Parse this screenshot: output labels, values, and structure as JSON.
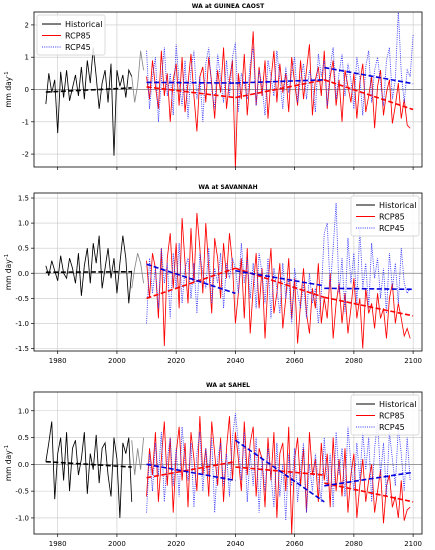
{
  "chart_data": [
    {
      "type": "line",
      "title": "WA at GUINEA CAOST",
      "ylabel": "mm day$^{-1}$",
      "ylabel_text": "mm day",
      "ylabel_sup": "-1",
      "xlim": [
        1972,
        2103
      ],
      "ylim": [
        -2.4,
        2.4
      ],
      "yticks": [
        -2,
        -1,
        0,
        1,
        2
      ],
      "xticks": [
        1980,
        2000,
        2020,
        2040,
        2060,
        2080,
        2100
      ],
      "xtick_labels_shown": false,
      "legend_position": "top-left",
      "legend": [
        {
          "label": "Historical",
          "color": "#000000",
          "style": "solid"
        },
        {
          "label": "RCP85",
          "color": "#ff0000",
          "style": "solid"
        },
        {
          "label": "RCP45",
          "color": "#3333ff",
          "style": "dotted"
        }
      ],
      "series": [
        {
          "name": "Historical",
          "color": "#000000",
          "dash": "solid",
          "x0": 1976,
          "values": [
            -0.45,
            0.5,
            -0.1,
            0.3,
            -1.35,
            0.55,
            -0.25,
            0.6,
            -0.35,
            0.05,
            0.45,
            -0.2,
            0.7,
            -0.3,
            0.9,
            0.2,
            1.3,
            0.4,
            -0.6,
            0.2,
            0.6,
            -0.4,
            0.8,
            -2.05,
            0.6,
            0.1,
            0.45,
            -0.25,
            0.6,
            0.4
          ]
        },
        {
          "name": "Transition",
          "color": "#888888",
          "dash": "solid",
          "x0": 2005,
          "values": [
            0.4,
            -0.4,
            0.15,
            1.2,
            0.6
          ]
        },
        {
          "name": "RCP85",
          "color": "#ff0000",
          "dash": "solid",
          "x0": 2010,
          "values": [
            0.4,
            -0.3,
            0.9,
            0.1,
            -0.6,
            1.2,
            -0.2,
            0.5,
            -1.0,
            0.3,
            0.8,
            -0.5,
            1.0,
            -0.7,
            0.2,
            1.1,
            -0.2,
            -1.3,
            0.4,
            0.7,
            -0.4,
            1.0,
            0.2,
            -0.9,
            0.6,
            -0.1,
            1.3,
            -0.6,
            0.3,
            0.9,
            -2.45,
            0.5,
            -0.3,
            1.1,
            -0.8,
            0.4,
            1.8,
            -0.5,
            0.7,
            -0.2,
            0.9,
            -0.9,
            0.3,
            1.2,
            -0.4,
            0.8,
            -0.1,
            0.5,
            -0.7,
            1.0,
            0.2,
            -0.5,
            0.9,
            -0.3,
            0.6,
            1.4,
            -0.8,
            0.3,
            0.7,
            -0.2,
            1.2,
            -0.6,
            0.4,
            0.9,
            -0.5,
            0.3,
            -1.0,
            0.6,
            0.1,
            -0.4,
            0.5,
            -0.9,
            0.2,
            0.8,
            -0.7,
            -0.2,
            0.4,
            -1.2,
            0.1,
            0.6,
            -0.8,
            -0.1,
            0.3,
            -1.05,
            -0.5,
            0.2,
            -0.9,
            -0.3,
            -1.1,
            -1.2
          ]
        },
        {
          "name": "RCP45",
          "color": "#3333ff",
          "dash": "dotted",
          "x0": 2010,
          "values": [
            1.2,
            -0.6,
            0.4,
            1.0,
            -1.0,
            0.3,
            1.3,
            -0.2,
            0.5,
            -0.8,
            1.4,
            0.2,
            -0.5,
            0.9,
            -0.9,
            0.6,
            1.2,
            -0.3,
            0.4,
            -1.0,
            0.8,
            1.3,
            0.0,
            -0.6,
            1.1,
            0.3,
            -0.4,
            0.9,
            -0.2,
            1.0,
            1.45,
            -0.7,
            0.5,
            0.2,
            -0.3,
            0.8,
            1.3,
            -0.5,
            0.6,
            0.1,
            -0.8,
            0.9,
            0.4,
            -0.2,
            1.2,
            0.3,
            -0.6,
            0.7,
            -0.1,
            0.5,
            1.0,
            -0.4,
            0.3,
            0.8,
            -0.3,
            0.6,
            0.2,
            -0.7,
            1.1,
            0.4,
            0.9,
            -0.5,
            0.7,
            1.3,
            -0.3,
            0.5,
            1.1,
            -0.2,
            0.8,
            0.3,
            -0.6,
            1.0,
            0.4,
            -0.8,
            0.7,
            1.2,
            -0.4,
            0.6,
            1.0,
            0.2,
            -0.5,
            0.9,
            1.3,
            -0.3,
            0.3,
            2.45,
            0.5,
            -0.4,
            0.6,
            0.4,
            1.7
          ]
        }
      ],
      "trends": [
        {
          "color": "#000000",
          "x": [
            1976,
            2005
          ],
          "y": [
            -0.08,
            0.05
          ]
        },
        {
          "color": "#ff0000",
          "x": [
            2010,
            2040
          ],
          "y": [
            0.08,
            -0.25
          ]
        },
        {
          "color": "#ff0000",
          "x": [
            2040,
            2070
          ],
          "y": [
            -0.25,
            0.3
          ]
        },
        {
          "color": "#ff0000",
          "x": [
            2070,
            2100
          ],
          "y": [
            0.3,
            -0.62
          ]
        },
        {
          "color": "#0000dd",
          "x": [
            2010,
            2040
          ],
          "y": [
            0.22,
            0.2
          ]
        },
        {
          "color": "#0000dd",
          "x": [
            2040,
            2070
          ],
          "y": [
            0.2,
            0.3
          ]
        },
        {
          "color": "#0000dd",
          "x": [
            2070,
            2100
          ],
          "y": [
            0.68,
            0.18
          ]
        }
      ]
    },
    {
      "type": "line",
      "title": "WA at SAVANNAH",
      "ylabel": "mm day$^{-1}$",
      "ylabel_text": "mm day",
      "ylabel_sup": "-1",
      "xlim": [
        1972,
        2103
      ],
      "ylim": [
        -1.55,
        1.6
      ],
      "yticks": [
        -1.5,
        -1.0,
        -0.5,
        0.0,
        0.5,
        1.0,
        1.5
      ],
      "xticks": [
        1980,
        2000,
        2020,
        2040,
        2060,
        2080,
        2100
      ],
      "xtick_labels_shown": true,
      "legend_position": "top-right",
      "legend": [
        {
          "label": "Historical",
          "color": "#000000",
          "style": "solid"
        },
        {
          "label": "RCP85",
          "color": "#ff0000",
          "style": "solid"
        },
        {
          "label": "RCP45",
          "color": "#3333ff",
          "style": "dotted"
        }
      ],
      "series": [
        {
          "name": "Historical",
          "color": "#000000",
          "dash": "solid",
          "x0": 1976,
          "values": [
            0.15,
            -0.05,
            0.25,
            0.05,
            -0.15,
            0.35,
            0.0,
            -0.1,
            0.3,
            0.1,
            -0.2,
            0.4,
            -0.45,
            0.15,
            0.5,
            -0.2,
            0.6,
            0.2,
            0.75,
            -0.3,
            0.1,
            0.5,
            -0.1,
            0.3,
            -0.4,
            0.2,
            0.75,
            0.3,
            -0.6,
            0.05
          ]
        },
        {
          "name": "Transition",
          "color": "#888888",
          "dash": "solid",
          "x0": 2005,
          "values": [
            -0.3,
            0.1,
            0.4,
            0.2,
            -0.2
          ]
        },
        {
          "name": "RCP85",
          "color": "#ff0000",
          "dash": "solid",
          "x0": 2010,
          "values": [
            0.25,
            -0.5,
            0.4,
            0.1,
            -0.9,
            0.5,
            -1.45,
            0.3,
            0.8,
            -0.3,
            0.6,
            -0.7,
            1.1,
            0.2,
            -0.6,
            0.9,
            -0.2,
            1.2,
            0.5,
            -0.4,
            1.0,
            0.1,
            -0.8,
            0.7,
            0.3,
            -0.5,
            0.6,
            -0.1,
            0.8,
            0.2,
            -1.0,
            -0.4,
            0.3,
            -0.9,
            0.5,
            -1.2,
            -0.3,
            0.4,
            -0.7,
            0.1,
            -1.3,
            -0.2,
            0.5,
            -0.8,
            -0.4,
            0.2,
            -1.1,
            -0.5,
            0.3,
            -0.9,
            -0.1,
            -1.4,
            -0.6,
            0.1,
            -0.8,
            -1.2,
            -0.3,
            -0.7,
            0.2,
            -1.0,
            -0.5,
            -0.9,
            0.0,
            -1.3,
            -0.6,
            -0.2,
            -1.0,
            -0.4,
            -1.2,
            -0.7,
            -0.1,
            -0.9,
            -0.5,
            -1.5,
            -0.3,
            -0.8,
            -0.6,
            -1.1,
            -0.4,
            -0.9,
            -0.7,
            -1.3,
            -0.5,
            -0.2,
            -1.0,
            -0.6,
            -0.9,
            -1.25,
            -1.1,
            -1.3
          ]
        },
        {
          "name": "RCP45",
          "color": "#3333ff",
          "dash": "dotted",
          "x0": 2010,
          "values": [
            -1.0,
            0.3,
            -0.4,
            0.1,
            -0.7,
            0.5,
            -0.2,
            0.2,
            -0.9,
            0.4,
            -0.3,
            0.6,
            -0.6,
            0.1,
            0.3,
            -0.5,
            0.2,
            -0.8,
            0.4,
            0.0,
            -0.3,
            0.5,
            -0.6,
            0.1,
            -0.2,
            0.4,
            -0.7,
            0.2,
            -0.1,
            0.3,
            0.1,
            -0.4,
            0.6,
            -0.2,
            0.3,
            -0.5,
            0.2,
            -0.7,
            0.4,
            0.0,
            -0.6,
            0.3,
            -0.9,
            0.1,
            -0.3,
            -0.8,
            0.2,
            -0.5,
            -0.1,
            -1.0,
            0.1,
            -0.4,
            -0.7,
            -0.2,
            -0.9,
            0.0,
            -0.6,
            -0.3,
            -1.0,
            -0.4,
            0.8,
            1.0,
            -0.3,
            0.5,
            1.4,
            -0.4,
            0.3,
            -0.8,
            0.7,
            -0.2,
            0.4,
            -0.6,
            0.9,
            -0.3,
            0.2,
            -0.7,
            0.6,
            -0.1,
            0.3,
            -0.5,
            0.1,
            -0.8,
            0.4,
            -0.3,
            0.2,
            -0.6,
            0.5,
            -0.2,
            -0.4,
            -0.3
          ]
        }
      ],
      "trends": [
        {
          "color": "#000000",
          "x": [
            1976,
            2005
          ],
          "y": [
            0.02,
            0.03
          ]
        },
        {
          "color": "#ff0000",
          "x": [
            2010,
            2040
          ],
          "y": [
            -0.5,
            0.1
          ]
        },
        {
          "color": "#ff0000",
          "x": [
            2040,
            2070
          ],
          "y": [
            0.1,
            -0.48
          ]
        },
        {
          "color": "#ff0000",
          "x": [
            2070,
            2100
          ],
          "y": [
            -0.48,
            -0.85
          ]
        },
        {
          "color": "#0000dd",
          "x": [
            2010,
            2040
          ],
          "y": [
            0.18,
            -0.4
          ]
        },
        {
          "color": "#0000dd",
          "x": [
            2040,
            2070
          ],
          "y": [
            0.05,
            -0.25
          ]
        },
        {
          "color": "#0000dd",
          "x": [
            2070,
            2100
          ],
          "y": [
            -0.3,
            -0.32
          ]
        }
      ]
    },
    {
      "type": "line",
      "title": "WA at SAHEL",
      "ylabel": "mm day$^{-1}$",
      "ylabel_text": "mm day",
      "ylabel_sup": "-1",
      "xlim": [
        1972,
        2103
      ],
      "ylim": [
        -1.3,
        1.35
      ],
      "yticks": [
        -1.0,
        -0.5,
        0.0,
        0.5,
        1.0
      ],
      "xticks": [
        1980,
        2000,
        2020,
        2040,
        2060,
        2080,
        2100
      ],
      "xtick_labels_shown": true,
      "legend_position": "top-right",
      "legend": [
        {
          "label": "Historical",
          "color": "#000000",
          "style": "solid"
        },
        {
          "label": "RCP85",
          "color": "#ff0000",
          "style": "solid"
        },
        {
          "label": "RCP45",
          "color": "#3333ff",
          "style": "dotted"
        }
      ],
      "series": [
        {
          "name": "Historical",
          "color": "#000000",
          "dash": "solid",
          "x0": 1976,
          "values": [
            0.05,
            0.4,
            0.8,
            -0.65,
            0.2,
            0.5,
            -0.3,
            0.6,
            -0.5,
            0.3,
            0.45,
            -0.2,
            0.1,
            0.6,
            -0.55,
            0.2,
            -0.1,
            0.55,
            -0.35,
            0.3,
            0.4,
            -0.2,
            -0.6,
            0.5,
            0.1,
            -1.0,
            0.4,
            0.2,
            0.5,
            -0.7
          ]
        },
        {
          "name": "Transition",
          "color": "#888888",
          "dash": "solid",
          "x0": 2005,
          "values": [
            0.45,
            -0.2,
            0.3,
            -0.1,
            0.5
          ]
        },
        {
          "name": "RCP85",
          "color": "#ff0000",
          "dash": "solid",
          "x0": 2010,
          "values": [
            -0.6,
            0.3,
            -0.2,
            0.6,
            -0.7,
            0.1,
            0.8,
            -0.4,
            0.5,
            -0.9,
            0.2,
            0.7,
            -0.3,
            0.4,
            -0.8,
            0.6,
            0.1,
            -0.5,
            0.9,
            -0.2,
            0.3,
            -0.6,
            0.8,
            0.2,
            -0.4,
            0.5,
            -0.7,
            0.3,
            0.9,
            -0.3,
            0.6,
            0.1,
            -0.5,
            0.8,
            -0.2,
            0.4,
            0.7,
            -0.6,
            0.3,
            0.1,
            -0.8,
            0.5,
            -0.3,
            0.6,
            -1.0,
            0.2,
            0.4,
            -0.5,
            0.7,
            -1.3,
            0.1,
            0.5,
            -0.4,
            0.3,
            -0.9,
            0.6,
            -0.2,
            0.1,
            -0.7,
            0.4,
            -0.3,
            0.2,
            -0.8,
            0.5,
            -0.5,
            0.1,
            -0.6,
            0.3,
            -0.9,
            -0.2,
            0.2,
            -1.0,
            -0.4,
            0.1,
            -0.7,
            -0.3,
            0.0,
            -0.9,
            -0.5,
            -0.1,
            -1.1,
            -0.4,
            -0.2,
            -0.8,
            -0.6,
            -1.0,
            -0.3,
            -1.05,
            -0.85,
            -0.8
          ]
        },
        {
          "name": "RCP45",
          "color": "#3333ff",
          "dash": "dotted",
          "x0": 2010,
          "values": [
            -0.9,
            0.2,
            -0.5,
            0.4,
            -0.2,
            0.6,
            -0.7,
            0.1,
            0.5,
            -0.4,
            0.3,
            -0.6,
            0.7,
            0.0,
            -0.3,
            0.4,
            -0.8,
            0.2,
            0.6,
            -0.5,
            0.3,
            -0.2,
            0.5,
            -0.9,
            0.1,
            0.4,
            -0.4,
            0.2,
            -0.6,
            0.5,
            0.95,
            0.4,
            -0.3,
            0.6,
            -0.7,
            0.2,
            -0.4,
            0.5,
            -0.9,
            0.1,
            -0.5,
            0.3,
            -0.2,
            -0.8,
            0.4,
            -0.6,
            0.0,
            -1.05,
            0.2,
            -0.4,
            0.3,
            -0.7,
            -0.1,
            0.4,
            -0.9,
            0.0,
            -0.5,
            0.2,
            -0.3,
            -0.7,
            0.5,
            -0.4,
            0.2,
            -0.8,
            0.6,
            -0.2,
            0.3,
            -0.6,
            0.7,
            0.0,
            -0.5,
            0.4,
            -0.3,
            0.6,
            -0.1,
            0.5,
            -0.7,
            0.3,
            0.8,
            -0.2,
            0.4,
            -0.6,
            0.6,
            0.1,
            -0.4,
            0.7,
            0.2,
            -0.5,
            0.5,
            -0.3
          ]
        }
      ],
      "trends": [
        {
          "color": "#000000",
          "x": [
            1976,
            2005
          ],
          "y": [
            0.05,
            -0.05
          ]
        },
        {
          "color": "#ff0000",
          "x": [
            2010,
            2040
          ],
          "y": [
            -0.25,
            0.05
          ]
        },
        {
          "color": "#ff0000",
          "x": [
            2040,
            2070
          ],
          "y": [
            -0.05,
            -0.2
          ]
        },
        {
          "color": "#ff0000",
          "x": [
            2070,
            2100
          ],
          "y": [
            -0.35,
            -0.7
          ]
        },
        {
          "color": "#0000dd",
          "x": [
            2010,
            2040
          ],
          "y": [
            0.0,
            -0.3
          ]
        },
        {
          "color": "#0000dd",
          "x": [
            2040,
            2070
          ],
          "y": [
            0.45,
            -0.7
          ]
        },
        {
          "color": "#0000dd",
          "x": [
            2070,
            2100
          ],
          "y": [
            -0.4,
            -0.15
          ]
        }
      ]
    }
  ]
}
